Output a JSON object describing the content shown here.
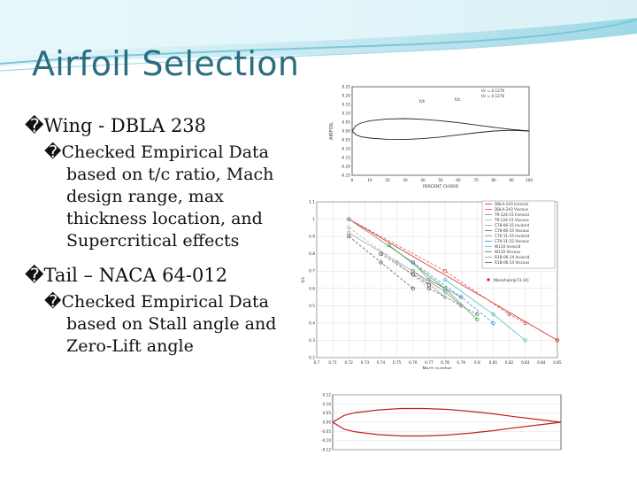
{
  "slide": {
    "title": "Airfoil Selection",
    "bullet_glyph": "�"
  },
  "bullets": [
    {
      "text": "Wing - DBLA 238",
      "sub": "Checked Empirical Data based on t/c ratio, Mach design range, max thickness location, and Supercritical effects"
    },
    {
      "text": "Tail – NACA 64-012",
      "sub": "Checked Empirical Data based on Stall angle and Zero-Lift angle"
    }
  ],
  "chart_data": [
    {
      "type": "line",
      "title": "",
      "xlabel": "PERCENT CHORD",
      "ylabel": "AIRFOIL",
      "xlim": [
        0,
        100
      ],
      "ylim": [
        -0.25,
        0.25
      ],
      "x_ticks": [
        "0",
        "10",
        "20",
        "30",
        "40",
        "50",
        "60",
        "70",
        "80",
        "90",
        "100"
      ],
      "y_ticks": [
        "0.25",
        "0.20",
        "0.15",
        "0.10",
        "0.05",
        "0.00",
        "-0.05",
        "-0.10",
        "-0.15",
        "-0.20",
        "-0.25"
      ],
      "annotations": [
        "t/c",
        "t/c"
      ],
      "legend": [
        "t/c = 0.1276",
        "t/c = 0.1276"
      ],
      "series": [
        {
          "name": "",
          "x": [
            0,
            2,
            5,
            10,
            20,
            30,
            40,
            50,
            60,
            70,
            80,
            90,
            100
          ],
          "y": [
            0,
            0.03,
            0.045,
            0.058,
            0.068,
            0.07,
            0.066,
            0.058,
            0.047,
            0.034,
            0.021,
            0.009,
            0
          ]
        },
        {
          "name": "",
          "x": [
            0,
            2,
            5,
            10,
            20,
            30,
            40,
            50,
            60,
            70,
            80,
            90,
            100
          ],
          "y": [
            0,
            -0.02,
            -0.032,
            -0.04,
            -0.047,
            -0.048,
            -0.043,
            -0.034,
            -0.022,
            -0.01,
            0.0,
            0.004,
            0
          ]
        }
      ]
    },
    {
      "type": "line",
      "title": "",
      "xlabel": "Mach number",
      "ylabel": "t/c",
      "xlim": [
        0.7,
        0.85
      ],
      "ylim": [
        0.2,
        1.1
      ],
      "x_ticks": [
        "0.7",
        "0.71",
        "0.72",
        "0.73",
        "0.74",
        "0.75",
        "0.76",
        "0.77",
        "0.78",
        "0.79",
        "0.8",
        "0.81",
        "0.82",
        "0.83",
        "0.84",
        "0.85"
      ],
      "y_ticks": [
        "1.1",
        "1",
        "0.9",
        "0.8",
        "0.7",
        "0.6",
        "0.5",
        "0.4",
        "0.3",
        "0.2"
      ],
      "legend_position": "top-right",
      "annotation": "Weisshaar(p73-14)",
      "series": [
        {
          "name": "DBLA-243 Inviscid",
          "color": "#d62020",
          "x": [
            0.72,
            0.85
          ],
          "y": [
            1.0,
            0.3
          ]
        },
        {
          "name": "DBLA-243 Viscous",
          "color": "#e05050",
          "x": [
            0.72,
            0.78,
            0.82,
            0.83
          ],
          "y": [
            1.0,
            0.7,
            0.45,
            0.4
          ]
        },
        {
          "name": "TR-124-15 Inviscid",
          "color": "#8a8a8a",
          "x": [
            0.72,
            0.76,
            0.77,
            0.79
          ],
          "y": [
            1.0,
            0.75,
            0.65,
            0.55
          ]
        },
        {
          "name": "TR-124-15 Viscous",
          "color": "#b0b0b0",
          "x": [
            0.72,
            0.75,
            0.77
          ],
          "y": [
            0.95,
            0.75,
            0.6
          ]
        },
        {
          "name": "C78-06-15 Inviscid",
          "color": "#a0a0a0",
          "x": [
            0.72,
            0.76,
            0.78
          ],
          "y": [
            0.92,
            0.7,
            0.55
          ]
        },
        {
          "name": "C78-06-15 Viscous",
          "color": "#606060",
          "x": [
            0.72,
            0.74,
            0.76
          ],
          "y": [
            0.9,
            0.75,
            0.6
          ]
        },
        {
          "name": "C70-11-15 Inviscid",
          "color": "#3cb050",
          "x": [
            0.745,
            0.78,
            0.8
          ],
          "y": [
            0.85,
            0.6,
            0.42
          ]
        },
        {
          "name": "C70-11-15 Viscous",
          "color": "#4a8fd0",
          "x": [
            0.76,
            0.79,
            0.81
          ],
          "y": [
            0.75,
            0.55,
            0.4
          ]
        },
        {
          "name": "W110 Inviscid",
          "color": "#50c0c0",
          "x": [
            0.78,
            0.81,
            0.83
          ],
          "y": [
            0.65,
            0.45,
            0.3
          ]
        },
        {
          "name": "W110 Viscous",
          "color": "#707070",
          "x": [
            0.77,
            0.79,
            0.8
          ],
          "y": [
            0.6,
            0.5,
            0.45
          ]
        },
        {
          "name": "R1B-06-14 Inviscid",
          "color": "#909090",
          "x": [
            0.76,
            0.78,
            0.79
          ],
          "y": [
            0.7,
            0.58,
            0.5
          ]
        },
        {
          "name": "R1B-06-14 Viscous",
          "color": "#555555",
          "x": [
            0.74,
            0.76,
            0.77
          ],
          "y": [
            0.8,
            0.68,
            0.62
          ]
        }
      ]
    },
    {
      "type": "line",
      "title": "",
      "xlabel": "",
      "ylabel": "",
      "xlim": [
        0,
        1
      ],
      "ylim": [
        -0.12,
        0.12
      ],
      "y_ticks": [
        "0.12",
        "0.10",
        "0.05",
        "0.00",
        "-0.05",
        "-0.10",
        "-0.12"
      ],
      "series": [
        {
          "name": "",
          "color": "#c02020",
          "x": [
            0,
            0.05,
            0.1,
            0.2,
            0.3,
            0.4,
            0.5,
            0.6,
            0.7,
            0.8,
            0.9,
            1.0
          ],
          "y": [
            0,
            0.03,
            0.042,
            0.054,
            0.06,
            0.06,
            0.056,
            0.048,
            0.037,
            0.024,
            0.012,
            0
          ]
        },
        {
          "name": "",
          "color": "#c02020",
          "x": [
            0,
            0.05,
            0.1,
            0.2,
            0.3,
            0.4,
            0.5,
            0.6,
            0.7,
            0.8,
            0.9,
            1.0
          ],
          "y": [
            0,
            -0.03,
            -0.042,
            -0.054,
            -0.06,
            -0.06,
            -0.056,
            -0.048,
            -0.037,
            -0.024,
            -0.012,
            0
          ]
        }
      ]
    }
  ]
}
